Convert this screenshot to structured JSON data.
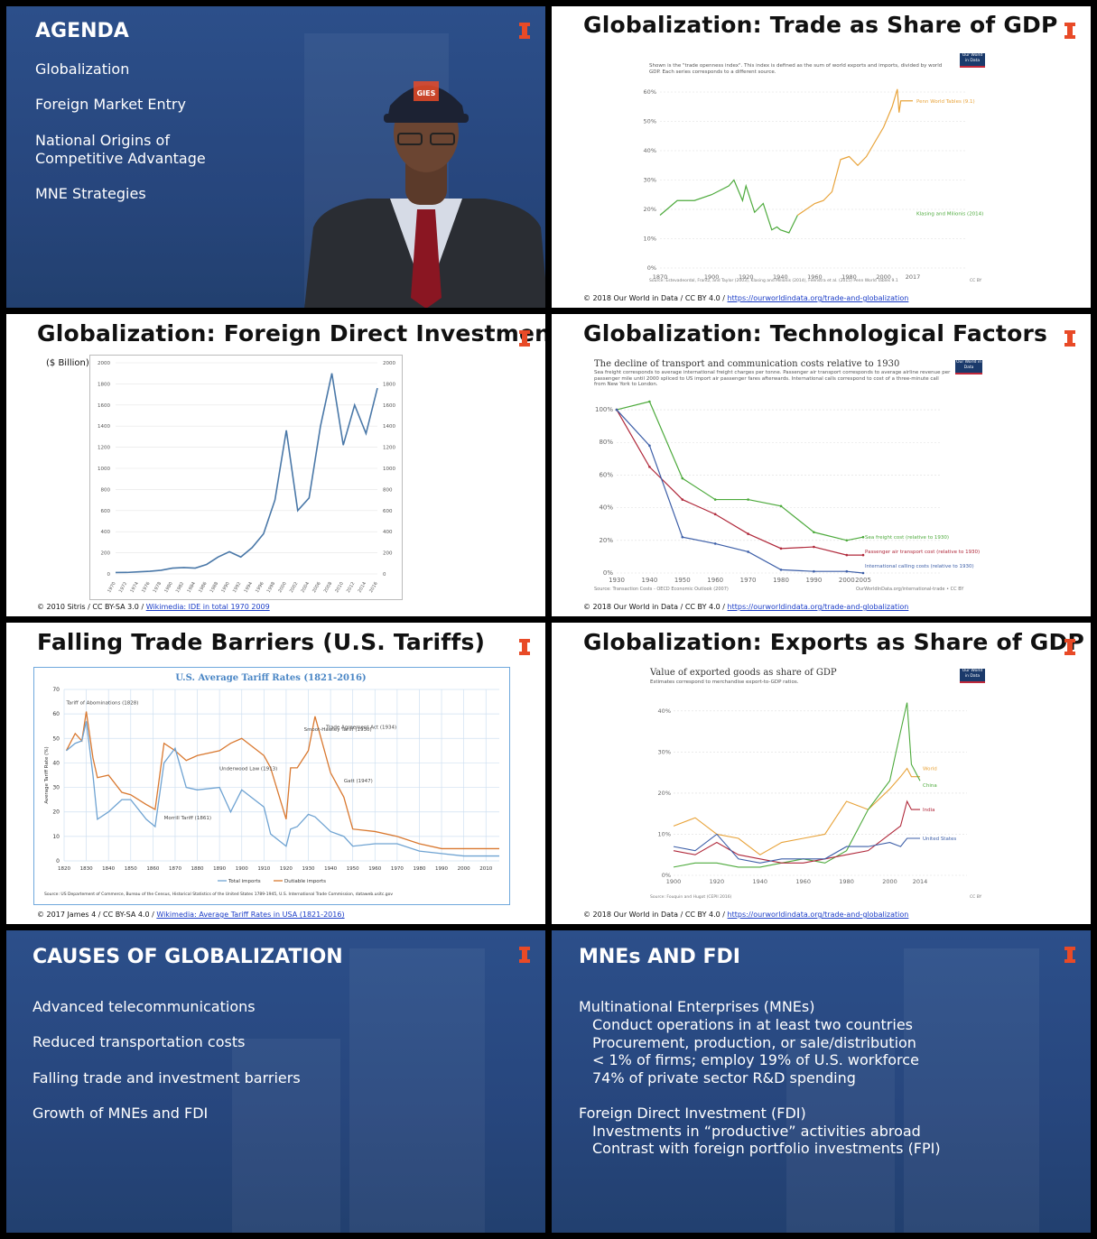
{
  "slides": {
    "agenda": {
      "title": "AGENDA",
      "items": [
        "Globalization",
        "Foreign Market Entry",
        "National Origins of\nCompetitive Advantage",
        "MNE Strategies"
      ],
      "cap_text": "GIES"
    },
    "trade_gdp": {
      "title": "Globalization: Trade as Share of GDP",
      "note": "Shown is the \"trade openness index\". This index is defined as the sum of world exports and imports, divided by world GDP. Each series corresponds to a different source.",
      "badge": "Our World in Data",
      "source": "Source: Estevadeordal, Frantz, and Taylor (2003), Klasing and Milionis (2014), Feenstra et al. (2015) Penn World Tables 9.1",
      "license": "CC BY",
      "footer_text": "© 2018 Our World in Data / CC BY 4.0 / ",
      "footer_link": "https://ourworldindata.org/trade-and-globalization"
    },
    "fdi": {
      "title": "Globalization: Foreign Direct Investment",
      "unit": "($ Billion)",
      "footer_text": "© 2010 Sitris  / CC BY-SA 3.0 / ",
      "footer_link": "Wikimedia: IDE in total 1970 2009"
    },
    "tech": {
      "title": "Globalization: Technological Factors",
      "chart_title": "The decline of transport and communication costs relative to 1930",
      "note": "Sea freight corresponds to average international freight charges per tonne. Passenger air transport corresponds to average airline revenue per passenger mile until 2000 spliced to US import air passenger fares afterwards. International calls correspond to cost of a three-minute call from New York to London.",
      "badge": "Our World in Data",
      "source": "Source: Transaction Costs - OECD Economic Outlook (2007)",
      "license": "OurWorldInData.org/international-trade • CC BY",
      "footer_text": "© 2018 Our World in Data / CC BY 4.0 / ",
      "footer_link": "https://ourworldindata.org/trade-and-globalization"
    },
    "tariffs": {
      "title": "Falling Trade Barriers (U.S. Tariffs)",
      "chart_title": "U.S. Average Tariff Rates (1821-2016)",
      "source": "Source: US Departement of Commerce, Bureau of the Census, Historical Statistics of the United States 1789-1945, U.S. International Trade Commission, dataweb.usitc.gov",
      "footer_text": "© 2017 James 4 / CC BY-SA 4.0 / ",
      "footer_link": "Wikimedia: Average Tariff Rates in USA (1821-2016)"
    },
    "exports": {
      "title": "Globalization: Exports as Share of GDP",
      "chart_title": "Value of exported goods as share of GDP",
      "note": "Estimates correspond to merchandise export-to-GDP ratios.",
      "badge": "Our World in Data",
      "source": "Source: Fouquin and Hugot (CEPII 2016)",
      "license": "CC BY",
      "footer_text": "© 2018 Our World in Data / CC BY 4.0 / ",
      "footer_link": "https://ourworldindata.org/trade-and-globalization"
    },
    "causes": {
      "title": "CAUSES OF GLOBALIZATION",
      "items": [
        "Advanced telecommunications",
        "Reduced transportation costs",
        "Falling trade and investment barriers",
        "Growth of MNEs and FDI"
      ]
    },
    "mnes": {
      "title": "MNEs AND FDI",
      "h1": "Multinational Enterprises (MNEs)",
      "sub1": [
        "Conduct operations in at least two countries",
        "Procurement, production, or sale/distribution",
        "< 1% of firms; employ 19% of U.S. workforce",
        "74% of private sector R&D spending"
      ],
      "h2": "Foreign Direct Investment (FDI)",
      "sub2": [
        "Investments in “productive” activities abroad",
        "Contrast with foreign portfolio investments (FPI)"
      ]
    }
  },
  "colors": {
    "illinois_orange": "#e84a27",
    "slide_blue": "#2a4c86",
    "green": "#4daa3c",
    "orange": "#e8a33a",
    "red": "#b0283a",
    "blue": "#3d5fa8"
  },
  "chart_data": [
    {
      "type": "line",
      "title": "",
      "x": [
        1870,
        1880,
        1890,
        1900,
        1910,
        1913,
        1920,
        1925,
        1930,
        1935,
        1940,
        1945,
        1950,
        1960,
        1970,
        1975,
        1980,
        1990,
        2000,
        2005,
        2008,
        2010,
        2014,
        2017
      ],
      "ylim": [
        0,
        60
      ],
      "ylabel": "%",
      "xticks": [
        1870,
        1900,
        1920,
        1940,
        1960,
        1980,
        2000,
        2017
      ],
      "yticks": [
        "0%",
        "10%",
        "20%",
        "30%",
        "40%",
        "50%",
        "60%"
      ],
      "series": [
        {
          "name": "Klasing and Milionis (2014)",
          "x": [
            1870,
            1880,
            1890,
            1900,
            1910,
            1913,
            1918,
            1920,
            1925,
            1930,
            1935,
            1938,
            1940,
            1945,
            1950
          ],
          "values": [
            18,
            23,
            23,
            25,
            28,
            30,
            23,
            28,
            19,
            22,
            13,
            14,
            13,
            12,
            18
          ]
        },
        {
          "name": "Penn World Tables (9.1)",
          "x": [
            1950,
            1955,
            1960,
            1965,
            1970,
            1975,
            1980,
            1985,
            1990,
            1995,
            2000,
            2005,
            2008,
            2009,
            2010,
            2014,
            2017
          ],
          "values": [
            18,
            20,
            22,
            23,
            26,
            37,
            38,
            35,
            38,
            43,
            48,
            55,
            61,
            53,
            57,
            57,
            57
          ]
        }
      ]
    },
    {
      "type": "line",
      "title": "",
      "ylabel": "($ Billion)",
      "x": [
        1970,
        1972,
        1974,
        1976,
        1978,
        1980,
        1982,
        1984,
        1986,
        1988,
        1990,
        1992,
        1994,
        1996,
        1998,
        2000,
        2002,
        2004,
        2006,
        2008,
        2010,
        2012,
        2014,
        2016
      ],
      "values": [
        13,
        14,
        20,
        25,
        35,
        55,
        60,
        55,
        90,
        160,
        210,
        160,
        250,
        380,
        700,
        1360,
        600,
        720,
        1400,
        1900,
        1220,
        1600,
        1330,
        1760
      ],
      "ylim": [
        0,
        2000
      ],
      "yticks": [
        0,
        200,
        400,
        600,
        800,
        1000,
        1200,
        1400,
        1600,
        1800,
        2000
      ]
    },
    {
      "type": "line",
      "title": "The decline of transport and communication costs relative to 1930",
      "x": [
        1930,
        1940,
        1950,
        1960,
        1970,
        1980,
        1990,
        2000,
        2005
      ],
      "ylim": [
        0,
        100
      ],
      "yticks": [
        "0%",
        "20%",
        "40%",
        "60%",
        "80%",
        "100%"
      ],
      "series": [
        {
          "name": "Sea freight cost (relative to 1930)",
          "values": [
            100,
            105,
            58,
            45,
            45,
            41,
            25,
            20,
            22
          ]
        },
        {
          "name": "Passenger air transport cost (relative to 1930)",
          "values": [
            100,
            65,
            45,
            36,
            24,
            15,
            16,
            11,
            11
          ]
        },
        {
          "name": "International calling costs (relative to 1930)",
          "values": [
            100,
            78,
            22,
            18,
            13,
            2,
            1,
            1,
            0
          ]
        }
      ]
    },
    {
      "type": "line",
      "title": "U.S. Average Tariff Rates (1821-2016)",
      "ylabel": "Average Tariff Rate (%)",
      "ylim": [
        0,
        70
      ],
      "xticks": [
        1820,
        1830,
        1840,
        1850,
        1860,
        1870,
        1880,
        1890,
        1900,
        1910,
        1920,
        1930,
        1940,
        1950,
        1960,
        1970,
        1980,
        1990,
        2000,
        2010
      ],
      "annotations": [
        "Tariff of Abominations (1828)",
        "Smoot-Hawley Tariff (1930)",
        "Trade Agreement Act (1934)",
        "Underwood Law (1913)",
        "Gatt (1947)",
        "Morrill Tariff (1861)"
      ],
      "series": [
        {
          "name": "Total imports",
          "x": [
            1821,
            1825,
            1828,
            1830,
            1833,
            1835,
            1840,
            1846,
            1850,
            1857,
            1861,
            1865,
            1870,
            1875,
            1880,
            1890,
            1895,
            1900,
            1910,
            1913,
            1920,
            1922,
            1925,
            1930,
            1933,
            1940,
            1946,
            1950,
            1960,
            1970,
            1980,
            1990,
            2000,
            2010,
            2016
          ],
          "values": [
            45,
            48,
            49,
            57,
            35,
            17,
            20,
            25,
            25,
            17,
            14,
            40,
            46,
            30,
            29,
            30,
            20,
            29,
            22,
            11,
            6,
            13,
            14,
            19,
            18,
            12,
            10,
            6,
            7,
            7,
            4,
            3,
            2,
            2,
            2
          ]
        },
        {
          "name": "Dutiable imports",
          "x": [
            1821,
            1825,
            1828,
            1830,
            1833,
            1835,
            1840,
            1846,
            1850,
            1857,
            1861,
            1865,
            1870,
            1875,
            1880,
            1890,
            1895,
            1900,
            1910,
            1913,
            1920,
            1922,
            1925,
            1930,
            1933,
            1940,
            1946,
            1950,
            1960,
            1970,
            1980,
            1990,
            2000,
            2010,
            2016
          ],
          "values": [
            45,
            52,
            49,
            61,
            42,
            34,
            35,
            28,
            27,
            23,
            21,
            48,
            45,
            41,
            43,
            45,
            48,
            50,
            43,
            38,
            17,
            38,
            38,
            45,
            59,
            36,
            26,
            13,
            12,
            10,
            7,
            5,
            5,
            5,
            5
          ]
        }
      ]
    },
    {
      "type": "line",
      "title": "Value of exported goods as share of GDP",
      "x": [
        1900,
        1910,
        1920,
        1930,
        1940,
        1950,
        1960,
        1970,
        1980,
        1990,
        2000,
        2005,
        2008,
        2010,
        2014
      ],
      "ylim": [
        0,
        45
      ],
      "yticks": [
        "0%",
        "10%",
        "20%",
        "30%",
        "40%"
      ],
      "xticks": [
        1900,
        1920,
        1940,
        1960,
        1980,
        2000,
        2014
      ],
      "series": [
        {
          "name": "World",
          "values": [
            12,
            14,
            10,
            9,
            5,
            8,
            9,
            10,
            18,
            16,
            21,
            24,
            26,
            24,
            24
          ]
        },
        {
          "name": "China",
          "values": [
            2,
            3,
            3,
            2,
            2,
            3,
            4,
            3,
            6,
            16,
            23,
            35,
            42,
            27,
            23
          ]
        },
        {
          "name": "India",
          "values": [
            6,
            5,
            8,
            5,
            4,
            3,
            3,
            4,
            5,
            6,
            10,
            12,
            18,
            16,
            16
          ]
        },
        {
          "name": "United States",
          "values": [
            7,
            6,
            10,
            4,
            3,
            4,
            4,
            4,
            7,
            7,
            8,
            7,
            9,
            9,
            9
          ]
        }
      ]
    }
  ]
}
